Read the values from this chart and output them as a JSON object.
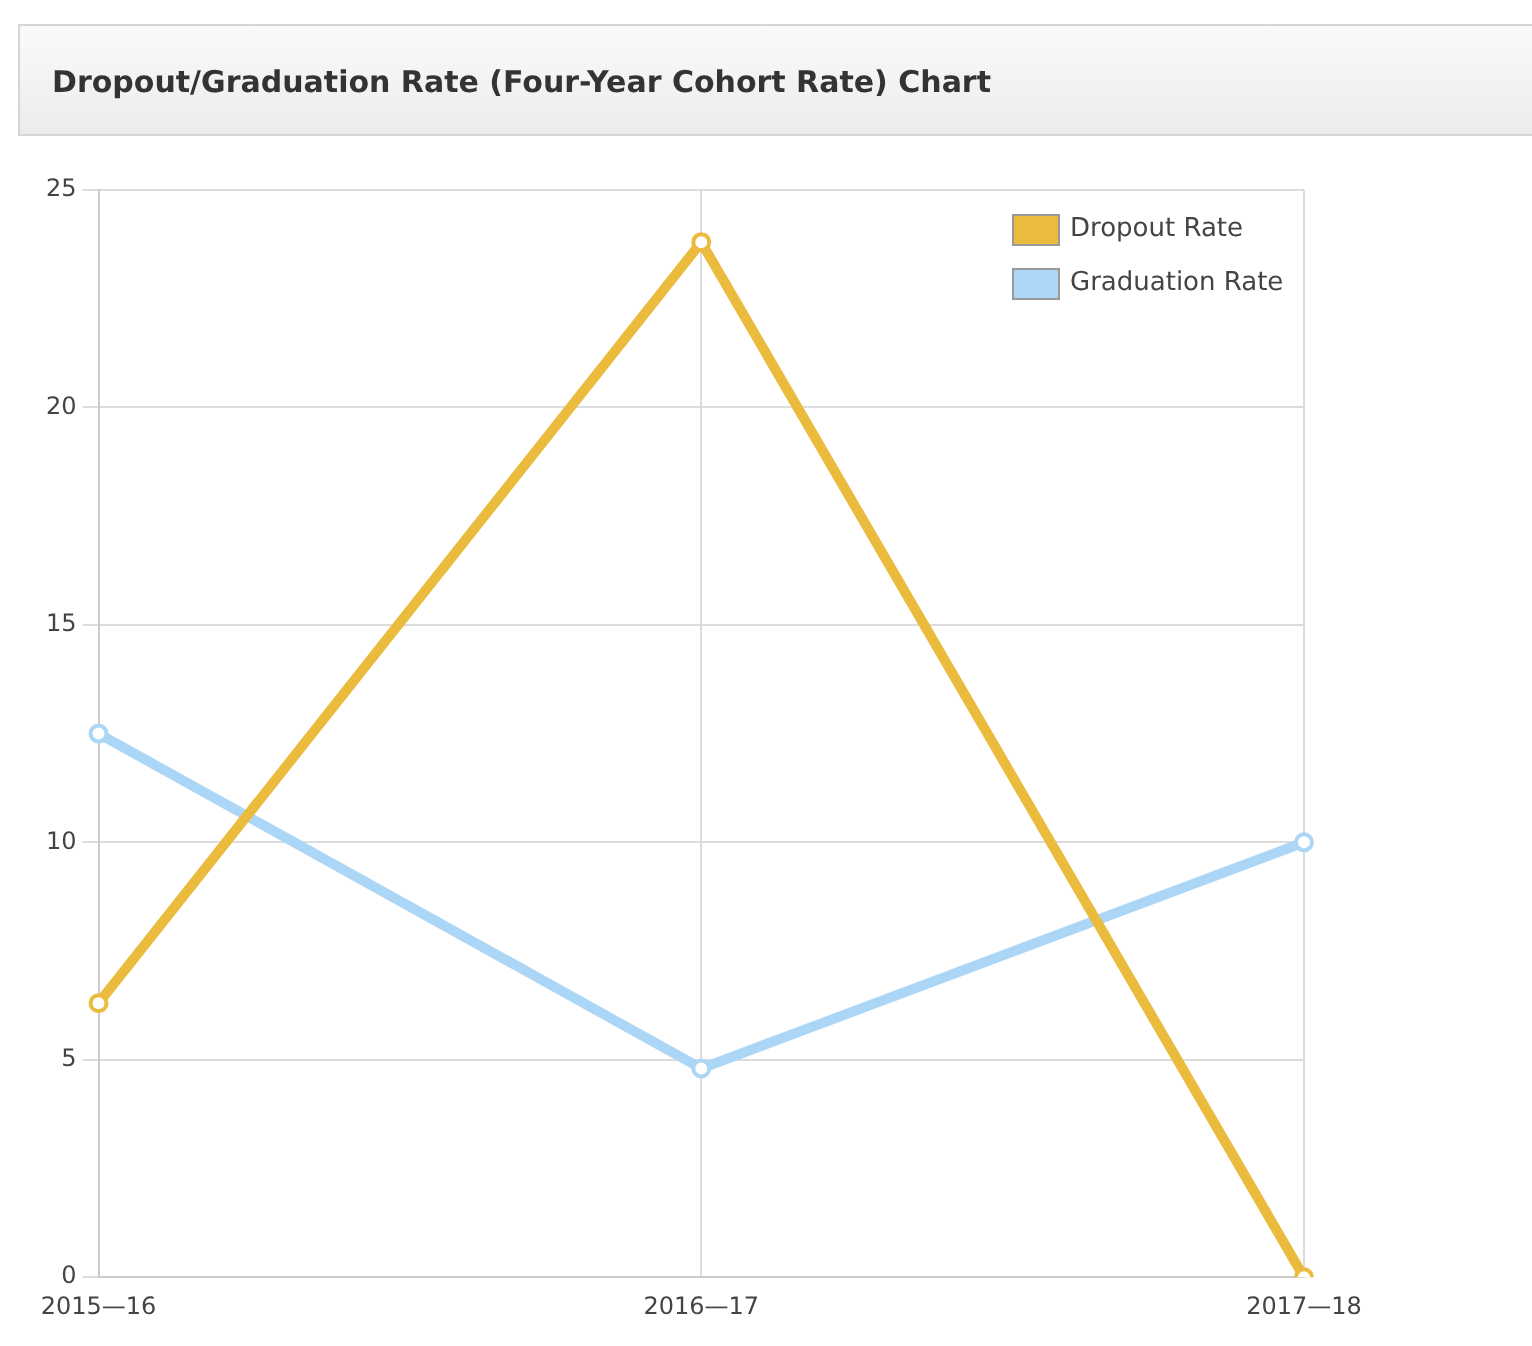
{
  "chart_data": {
    "type": "line",
    "title": "Dropout/Graduation Rate (Four-Year Cohort Rate) Chart",
    "categories": [
      "2015—16",
      "2016—17",
      "2017—18"
    ],
    "series": [
      {
        "name": "Dropout Rate",
        "color": "#ebbb3e",
        "values": [
          6.3,
          23.8,
          0
        ]
      },
      {
        "name": "Graduation Rate",
        "color": "#acd6f5",
        "values": [
          12.5,
          4.8,
          10.0
        ]
      }
    ],
    "ylim": [
      0,
      25
    ],
    "yticks": [
      0,
      5,
      10,
      15,
      20,
      25
    ],
    "grid": true,
    "legend": "top right",
    "marker": "circle",
    "line_style": "solid"
  }
}
